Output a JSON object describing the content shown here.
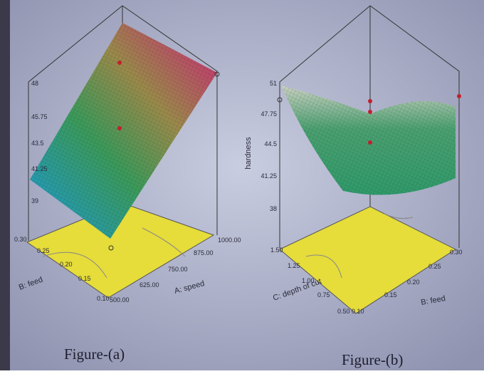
{
  "figures": [
    {
      "caption": "Figure-(a)",
      "z_ticks": [
        "48",
        "45.75",
        "43.5",
        "41.25",
        "39"
      ],
      "left_axis_label": "B: feed",
      "left_ticks": [
        "0.30",
        "0.25",
        "0.20",
        "0.15",
        "0.10"
      ],
      "right_axis_label": "A: speed",
      "right_ticks": [
        "500.00",
        "625.00",
        "750.00",
        "875.00",
        "1000.00"
      ]
    },
    {
      "caption": "Figure-(b)",
      "z_label": "hardness",
      "z_ticks": [
        "51",
        "47.75",
        "44.5",
        "41.25",
        "38"
      ],
      "left_axis_label": "C: depth of cut",
      "left_ticks": [
        "1.50",
        "1.25",
        "1.00",
        "0.75",
        "0.50"
      ],
      "right_axis_label": "B: feed",
      "right_ticks": [
        "0.10",
        "0.15",
        "0.20",
        "0.25",
        "0.30"
      ]
    }
  ]
}
